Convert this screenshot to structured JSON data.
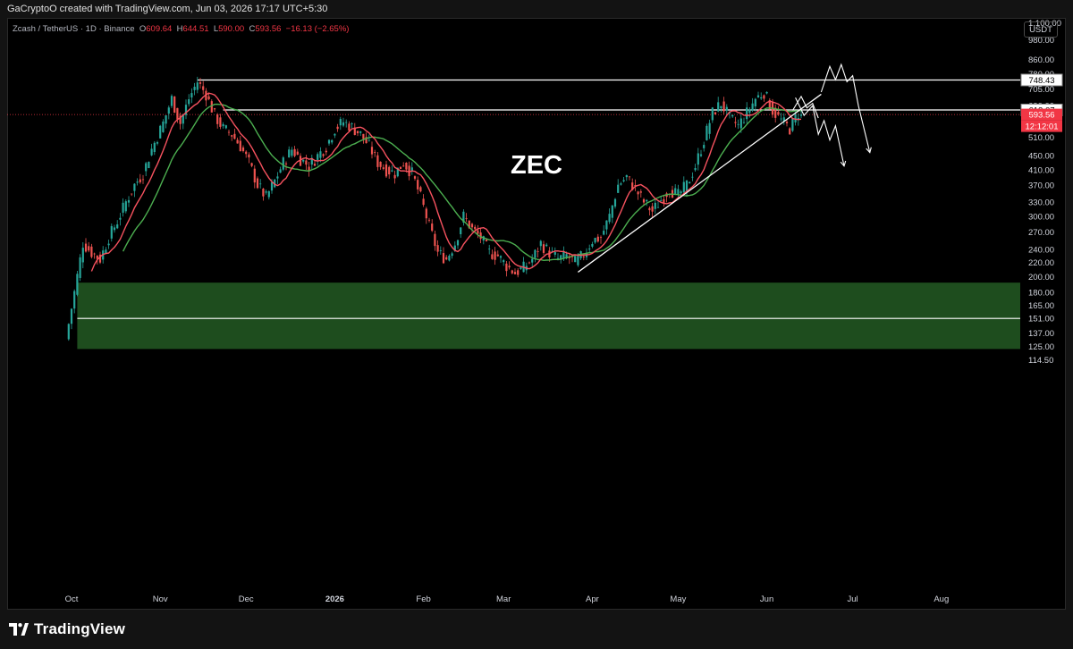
{
  "header": {
    "attribution": "GaCryptoO created with TradingView.com, Jun 03, 2026 17:17 UTC+5:30"
  },
  "legend": {
    "symbol": "Zcash / TetherUS · 1D · Binance",
    "o_label": "O",
    "o_value": "609.64",
    "h_label": "H",
    "h_value": "644.51",
    "l_label": "L",
    "l_value": "590.00",
    "c_label": "C",
    "c_value": "593.56",
    "change": "−16.13 (−2.65%)"
  },
  "unit_button": "USDT",
  "footer": {
    "logo_text": "TradingView"
  },
  "chart_data": {
    "type": "candlestick",
    "title": "ZEC",
    "scale": "log",
    "ylim": [
      110,
      1200
    ],
    "y_ticks": [
      1100,
      980,
      860,
      780,
      705,
      630,
      510,
      450,
      410,
      370,
      330,
      300,
      270,
      240,
      220,
      200,
      180,
      165,
      151,
      137,
      125,
      114.5
    ],
    "y_tick_labels": [
      "1,100.00",
      "980.00",
      "860.00",
      "780.00",
      "705.00",
      "630.00",
      "510.00",
      "450.00",
      "410.00",
      "370.00",
      "330.00",
      "300.00",
      "270.00",
      "240.00",
      "220.00",
      "200.00",
      "180.00",
      "165.00",
      "151.00",
      "137.00",
      "125.00",
      "114.50"
    ],
    "x_ticks": [
      "Oct",
      "Nov",
      "Dec",
      "2026",
      "Feb",
      "Mar",
      "Apr",
      "May",
      "Jun",
      "Jul",
      "Aug"
    ],
    "close_path": [
      [
        "2025-09-30",
        131
      ],
      [
        "2025-10-03",
        180
      ],
      [
        "2025-10-06",
        250
      ],
      [
        "2025-10-09",
        235
      ],
      [
        "2025-10-12",
        225
      ],
      [
        "2025-10-15",
        260
      ],
      [
        "2025-10-18",
        290
      ],
      [
        "2025-10-21",
        330
      ],
      [
        "2025-10-24",
        370
      ],
      [
        "2025-10-27",
        400
      ],
      [
        "2025-10-30",
        470
      ],
      [
        "2025-11-03",
        560
      ],
      [
        "2025-11-06",
        660
      ],
      [
        "2025-11-09",
        560
      ],
      [
        "2025-11-12",
        660
      ],
      [
        "2025-11-15",
        740
      ],
      [
        "2025-11-18",
        680
      ],
      [
        "2025-11-21",
        590
      ],
      [
        "2025-11-24",
        540
      ],
      [
        "2025-11-27",
        520
      ],
      [
        "2025-11-30",
        480
      ],
      [
        "2025-12-03",
        430
      ],
      [
        "2025-12-06",
        370
      ],
      [
        "2025-12-09",
        340
      ],
      [
        "2025-12-12",
        380
      ],
      [
        "2025-12-15",
        430
      ],
      [
        "2025-12-18",
        470
      ],
      [
        "2025-12-21",
        440
      ],
      [
        "2025-12-24",
        420
      ],
      [
        "2025-12-27",
        450
      ],
      [
        "2025-12-30",
        480
      ],
      [
        "2026-01-02",
        540
      ],
      [
        "2026-01-05",
        565
      ],
      [
        "2026-01-08",
        545
      ],
      [
        "2026-01-11",
        520
      ],
      [
        "2026-01-14",
        480
      ],
      [
        "2026-01-17",
        430
      ],
      [
        "2026-01-20",
        410
      ],
      [
        "2026-01-23",
        400
      ],
      [
        "2026-01-26",
        430
      ],
      [
        "2026-01-29",
        400
      ],
      [
        "2026-02-01",
        340
      ],
      [
        "2026-02-04",
        280
      ],
      [
        "2026-02-07",
        235
      ],
      [
        "2026-02-10",
        225
      ],
      [
        "2026-02-13",
        250
      ],
      [
        "2026-02-16",
        300
      ],
      [
        "2026-02-19",
        275
      ],
      [
        "2026-02-22",
        260
      ],
      [
        "2026-02-25",
        235
      ],
      [
        "2026-02-28",
        230
      ],
      [
        "2026-03-03",
        215
      ],
      [
        "2026-03-06",
        205
      ],
      [
        "2026-03-09",
        212
      ],
      [
        "2026-03-12",
        225
      ],
      [
        "2026-03-15",
        250
      ],
      [
        "2026-03-18",
        235
      ],
      [
        "2026-03-21",
        225
      ],
      [
        "2026-03-24",
        230
      ],
      [
        "2026-03-27",
        220
      ],
      [
        "2026-03-30",
        232
      ],
      [
        "2026-04-02",
        255
      ],
      [
        "2026-04-05",
        260
      ],
      [
        "2026-04-08",
        300
      ],
      [
        "2026-04-11",
        370
      ],
      [
        "2026-04-14",
        390
      ],
      [
        "2026-04-17",
        360
      ],
      [
        "2026-04-20",
        330
      ],
      [
        "2026-04-23",
        310
      ],
      [
        "2026-04-26",
        335
      ],
      [
        "2026-04-29",
        360
      ],
      [
        "2026-05-02",
        345
      ],
      [
        "2026-05-05",
        370
      ],
      [
        "2026-05-08",
        420
      ],
      [
        "2026-05-11",
        500
      ],
      [
        "2026-05-14",
        600
      ],
      [
        "2026-05-17",
        640
      ],
      [
        "2026-05-20",
        580
      ],
      [
        "2026-05-23",
        550
      ],
      [
        "2026-05-26",
        600
      ],
      [
        "2026-05-29",
        660
      ],
      [
        "2026-06-01",
        690
      ],
      [
        "2026-06-04",
        610
      ],
      [
        "2026-06-07",
        570
      ],
      [
        "2026-06-10",
        540
      ],
      [
        "2026-06-13",
        600
      ],
      [
        "2026-06-14",
        593.56
      ]
    ],
    "ma_fast_color": "#f7525f",
    "ma_slow_color": "#4caf50",
    "levels": [
      {
        "price": 748.43,
        "label": "748.43",
        "from": "2025-11-14"
      },
      {
        "price": 612.07,
        "label": "612.07",
        "from": "2025-11-23"
      },
      {
        "price": 151,
        "from": "2025-10-03"
      }
    ],
    "last_price": {
      "value": "593.56",
      "countdown": "12:12:01",
      "color": "#f23645"
    },
    "demand_zone": {
      "low": 123,
      "high": 192,
      "from": "2025-10-03",
      "color": "#1e4d1e"
    },
    "trendline": {
      "from": [
        "2026-03-27",
        206
      ],
      "to": [
        "2026-06-20",
        680
      ]
    },
    "projection_paths": [
      [
        [
          "2026-06-20",
          690
        ],
        [
          "2026-06-23",
          820
        ],
        [
          "2026-06-25",
          750
        ],
        [
          "2026-06-27",
          830
        ],
        [
          "2026-06-29",
          740
        ],
        [
          "2026-07-01",
          770
        ],
        [
          "2026-07-03",
          630
        ],
        [
          "2026-07-07",
          460
        ]
      ],
      [
        [
          "2026-06-11",
          665
        ],
        [
          "2026-06-14",
          590
        ],
        [
          "2026-06-17",
          630
        ],
        [
          "2026-06-19",
          520
        ],
        [
          "2026-06-21",
          570
        ],
        [
          "2026-06-23",
          500
        ],
        [
          "2026-06-25",
          550
        ],
        [
          "2026-06-28",
          420
        ]
      ],
      [
        [
          "2026-06-10",
          610
        ],
        [
          "2026-06-13",
          670
        ],
        [
          "2026-06-15",
          620
        ],
        [
          "2026-06-17",
          640
        ],
        [
          "2026-06-19",
          580
        ]
      ]
    ],
    "colors": {
      "up": "#26a69a",
      "down": "#ef5350",
      "lines": "#ffffff"
    }
  }
}
